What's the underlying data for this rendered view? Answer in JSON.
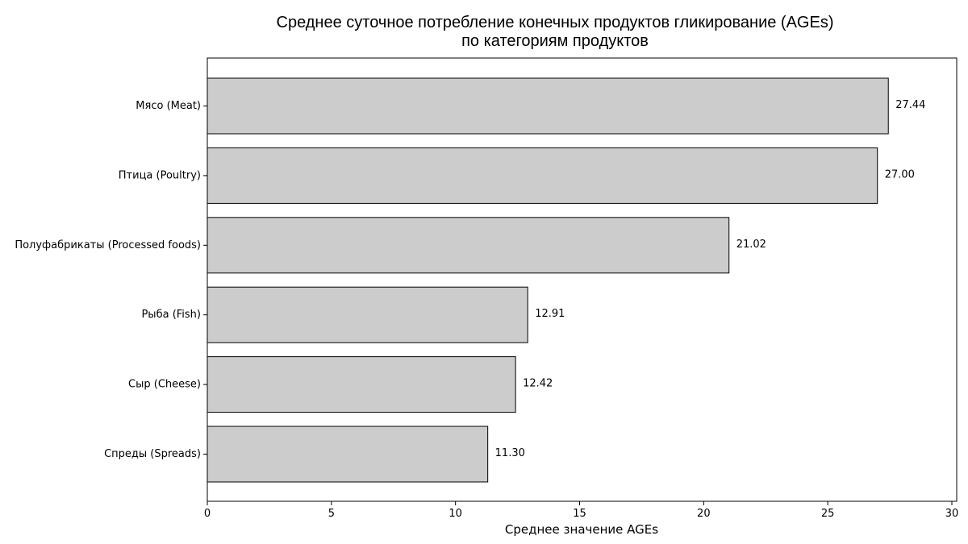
{
  "chart_data": {
    "type": "bar",
    "orientation": "horizontal",
    "title_lines": [
      "Среднее суточное потребление конечных продуктов гликирование (AGEs)",
      "по категориям продуктов"
    ],
    "xlabel": "Среднее значение AGEs",
    "ylabel": "",
    "categories": [
      "Мясо (Meat)",
      "Птица (Poultry)",
      "Полуфабрикаты (Processed foods)",
      "Рыба (Fish)",
      "Сыр (Cheese)",
      "Спреды (Spreads)"
    ],
    "values": [
      27.44,
      27.0,
      21.02,
      12.91,
      12.42,
      11.3
    ],
    "value_labels": [
      "27.44",
      "27.00",
      "21.02",
      "12.91",
      "12.42",
      "11.30"
    ],
    "xlim": [
      0,
      30
    ],
    "xticks": [
      0,
      5,
      10,
      15,
      20,
      25,
      30
    ],
    "xtick_labels": [
      "0",
      "5",
      "10",
      "15",
      "20",
      "25",
      "30"
    ],
    "grid": false,
    "legend": "none",
    "bar_color": "#cccccc",
    "edge_color": "#000000"
  }
}
